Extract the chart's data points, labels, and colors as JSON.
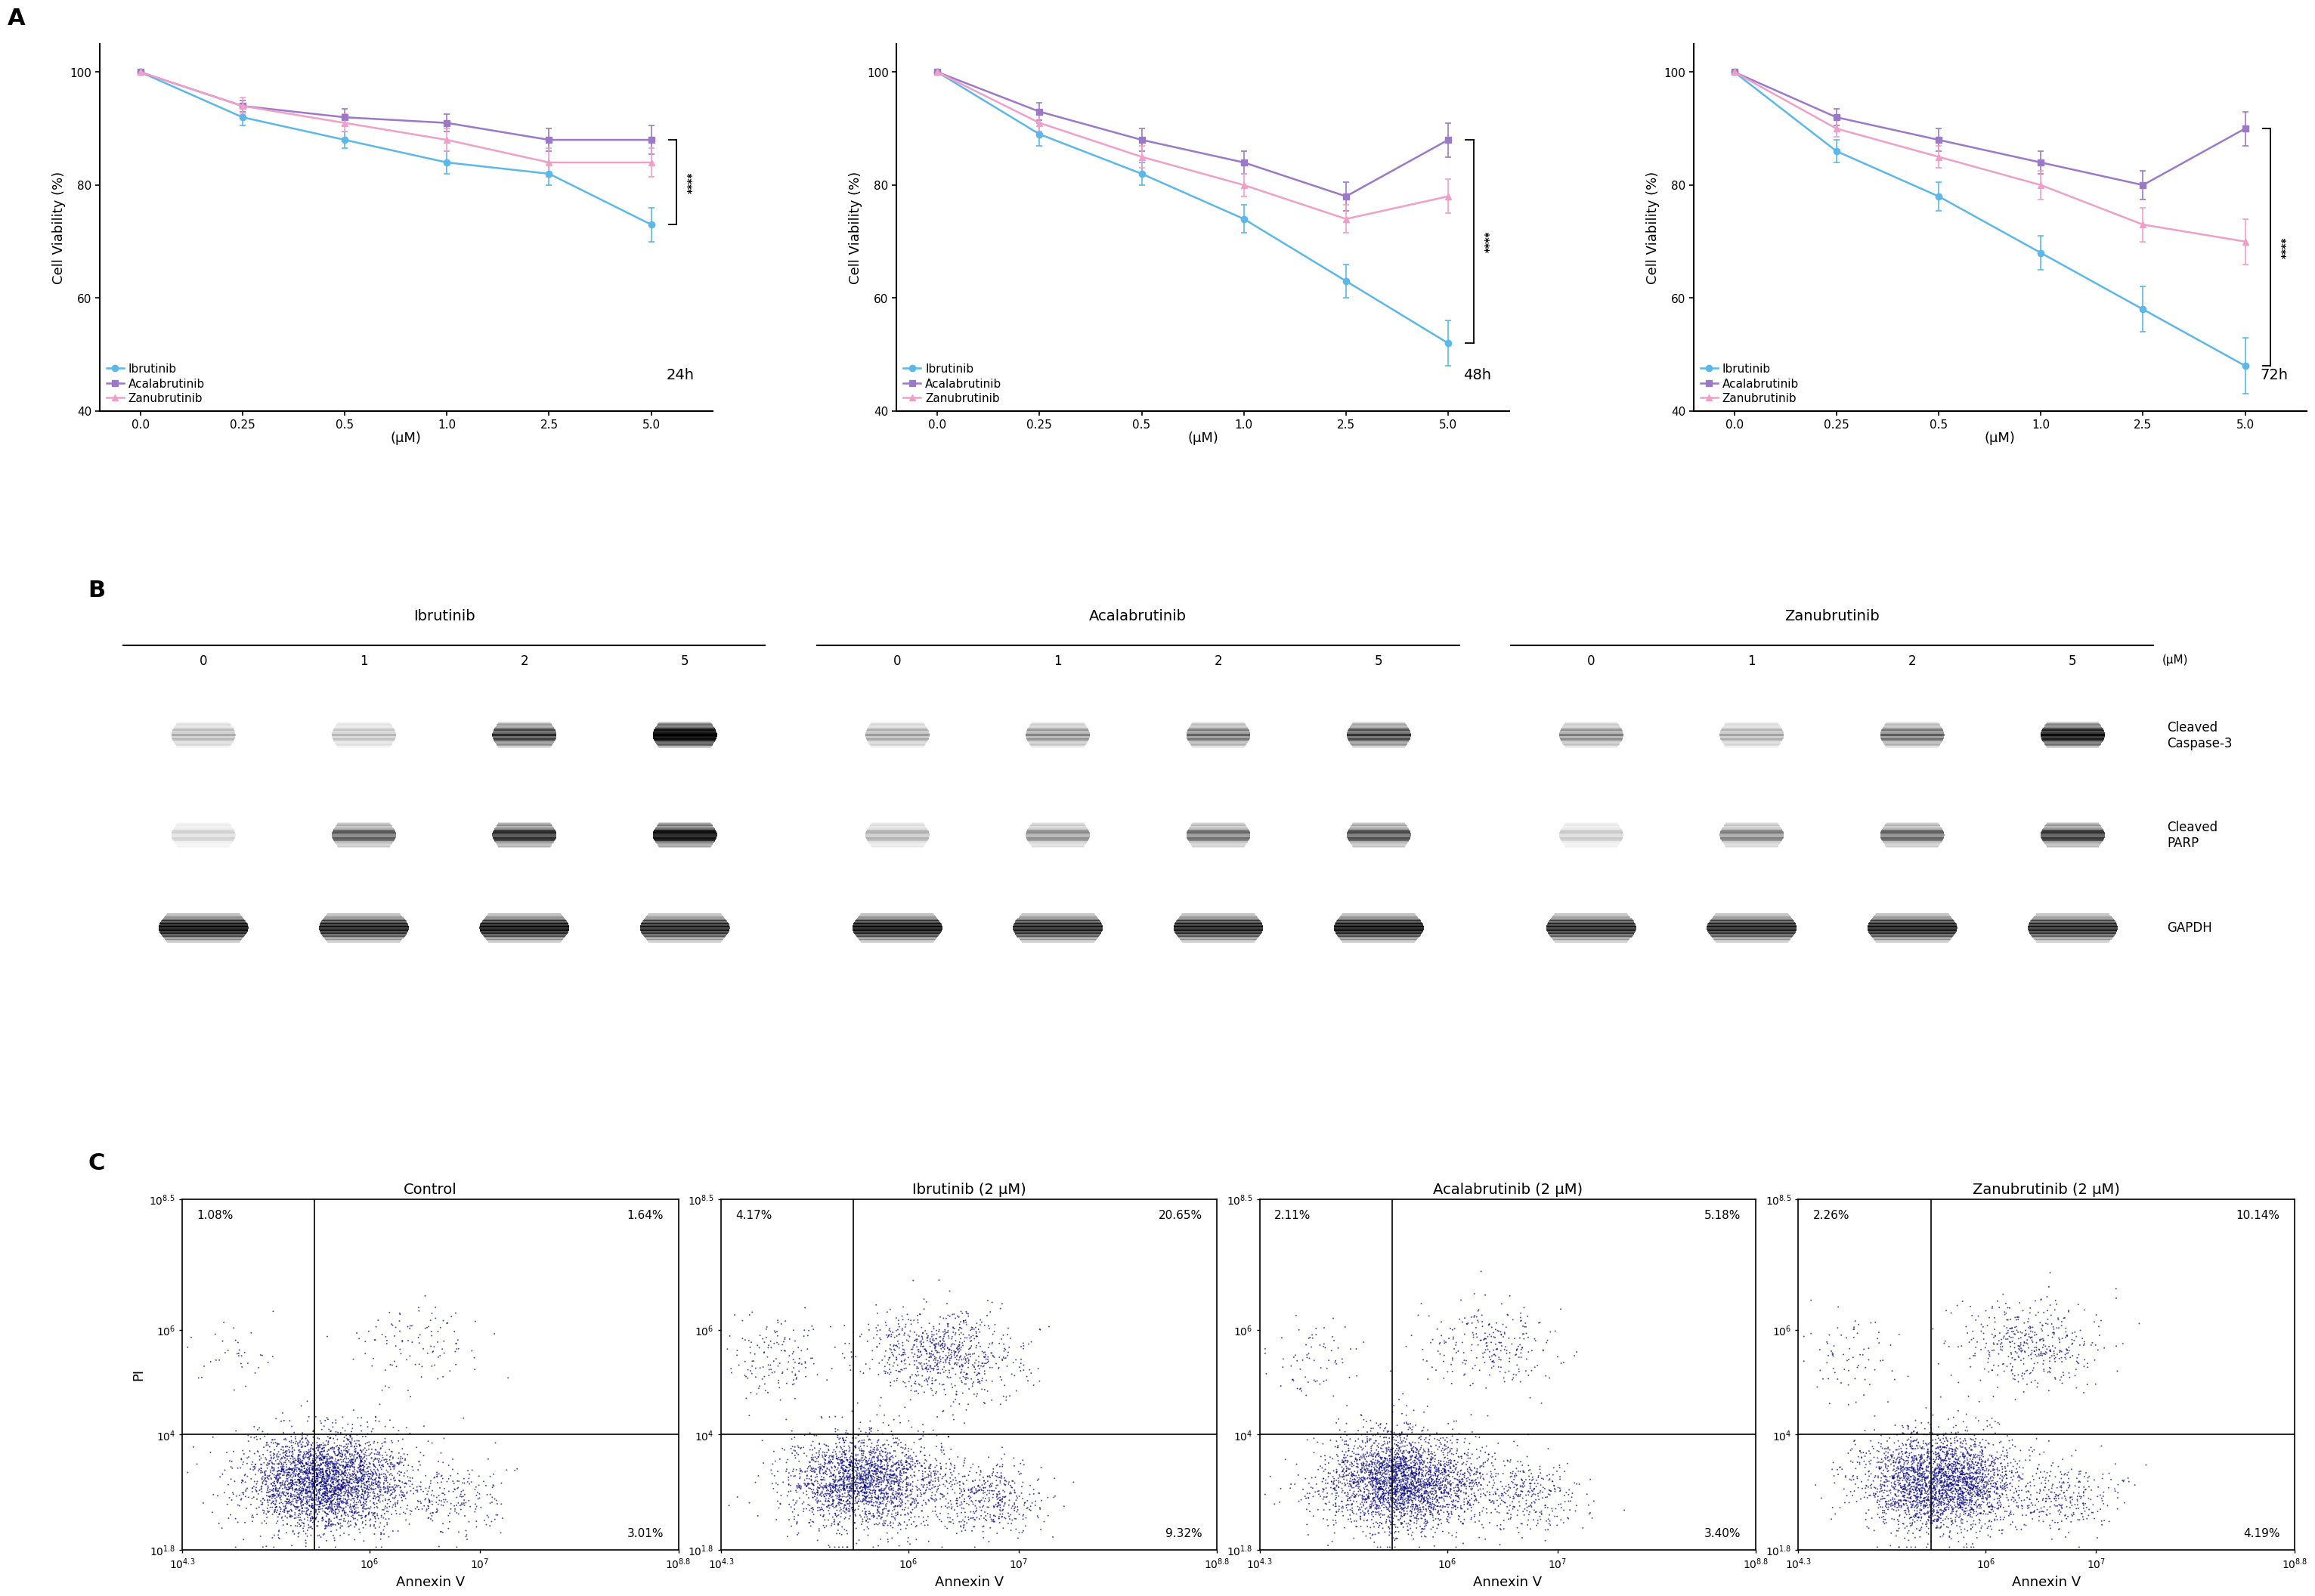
{
  "panel_A": {
    "x_labels": [
      "0.0",
      "0.25",
      "0.5",
      "1.0",
      "2.5",
      "5.0"
    ],
    "x_vals": [
      0,
      1,
      2,
      3,
      4,
      5
    ],
    "xlabel": "(μM)",
    "ylabel": "Cell Viability (%)",
    "ylim": [
      40,
      105
    ],
    "yticks": [
      40,
      60,
      80,
      100
    ],
    "time_labels": [
      "24h",
      "48h",
      "72h"
    ],
    "ibrutinib_color": "#5BB8E8",
    "acalabrutinib_color": "#9B79C8",
    "zanubrutinib_color": "#F0A0C8",
    "data_24h": {
      "ibrutinib": [
        100,
        92,
        88,
        84,
        82,
        73
      ],
      "ibrutinib_err": [
        0.5,
        1.5,
        1.5,
        2.0,
        2.0,
        3.0
      ],
      "acalabrutinib": [
        100,
        94,
        92,
        91,
        88,
        88
      ],
      "acalabrutinib_err": [
        0.5,
        1.0,
        1.5,
        1.5,
        2.0,
        2.5
      ],
      "zanubrutinib": [
        100,
        94,
        91,
        88,
        84,
        84
      ],
      "zanubrutinib_err": [
        0.5,
        1.5,
        1.5,
        2.0,
        2.5,
        2.5
      ]
    },
    "data_48h": {
      "ibrutinib": [
        100,
        89,
        82,
        74,
        63,
        52
      ],
      "ibrutinib_err": [
        0.5,
        2.0,
        2.0,
        2.5,
        3.0,
        4.0
      ],
      "acalabrutinib": [
        100,
        93,
        88,
        84,
        78,
        88
      ],
      "acalabrutinib_err": [
        0.5,
        1.5,
        2.0,
        2.0,
        2.5,
        3.0
      ],
      "zanubrutinib": [
        100,
        91,
        85,
        80,
        74,
        78
      ],
      "zanubrutinib_err": [
        0.5,
        1.5,
        2.0,
        2.0,
        2.5,
        3.0
      ]
    },
    "data_72h": {
      "ibrutinib": [
        100,
        86,
        78,
        68,
        58,
        48
      ],
      "ibrutinib_err": [
        0.5,
        2.0,
        2.5,
        3.0,
        4.0,
        5.0
      ],
      "acalabrutinib": [
        100,
        92,
        88,
        84,
        80,
        90
      ],
      "acalabrutinib_err": [
        0.5,
        1.5,
        2.0,
        2.0,
        2.5,
        3.0
      ],
      "zanubrutinib": [
        100,
        90,
        85,
        80,
        73,
        70
      ],
      "zanubrutinib_err": [
        0.5,
        1.5,
        2.0,
        2.5,
        3.0,
        4.0
      ]
    },
    "significance": "****"
  },
  "panel_B": {
    "drug_labels": [
      "Ibrutinib",
      "Acalabrutinib",
      "Zanubrutinib"
    ],
    "conc_labels": [
      "0",
      "1",
      "2",
      "5"
    ],
    "row_labels": [
      "Cleaved\nCaspase-3",
      "Cleaved\nPARP",
      "GAPDH"
    ],
    "um_label": "(μM)",
    "blot_bg": "#f5f5f5",
    "blot_border": "#000000"
  },
  "panel_C": {
    "titles": [
      "Control",
      "Ibrutinib (2 μM)",
      "Acalabrutinib (2 μM)",
      "Zanubrutinib (2 μM)"
    ],
    "top_left_pct": [
      "1.08%",
      "4.17%",
      "2.11%",
      "2.26%"
    ],
    "top_right_pct": [
      "1.64%",
      "20.65%",
      "5.18%",
      "10.14%"
    ],
    "bottom_right_pct": [
      "3.01%",
      "9.32%",
      "3.40%",
      "4.19%"
    ],
    "xlabel": "Annexin V",
    "ylabel": "PI",
    "x_div": 5.5,
    "y_div": 4.0,
    "xlim": [
      4.3,
      8.8
    ],
    "ylim": [
      1.8,
      8.5
    ],
    "xticks": [
      4.3,
      6.0,
      7.0,
      8.8
    ],
    "yticks": [
      1.8,
      4.0,
      6.0,
      8.5
    ],
    "xtick_labels": [
      "$10^{4.3}$",
      "$10^6$",
      "$10^7$",
      "$10^{8.8}$"
    ],
    "ytick_labels": [
      "$10^{1.8}$",
      "$10^4$",
      "$10^6$",
      "$10^{8.5}$"
    ]
  },
  "background_color": "#ffffff",
  "panel_label_fontsize": 22,
  "axis_fontsize": 13,
  "tick_fontsize": 11,
  "legend_fontsize": 11
}
